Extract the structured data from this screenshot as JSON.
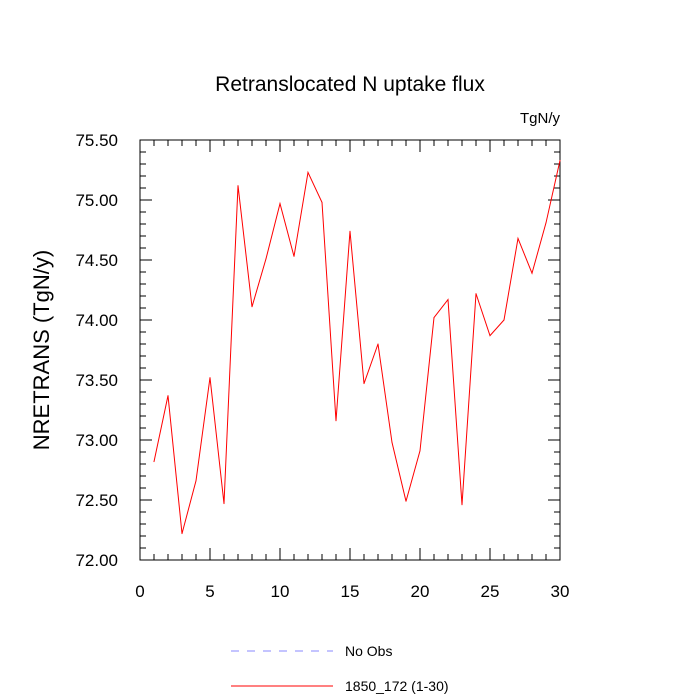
{
  "chart_data": {
    "type": "line",
    "title": "Retranslocated N uptake flux",
    "units": "TgN/y",
    "ylabel": "NRETRANS  (TgN/y)",
    "xlabel": "",
    "xlim": [
      0,
      30
    ],
    "ylim": [
      72.0,
      75.5
    ],
    "x_ticks": [
      0,
      5,
      10,
      15,
      20,
      25,
      30
    ],
    "x_tick_labels": [
      "0",
      "5",
      "10",
      "15",
      "20",
      "25",
      "30"
    ],
    "y_ticks": [
      72.0,
      72.5,
      73.0,
      73.5,
      74.0,
      74.5,
      75.0,
      75.5
    ],
    "y_tick_labels": [
      "72.00",
      "72.50",
      "73.00",
      "73.50",
      "74.00",
      "74.50",
      "75.00",
      "75.50"
    ],
    "x": [
      1,
      2,
      3,
      4,
      5,
      6,
      7,
      8,
      9,
      10,
      11,
      12,
      13,
      14,
      15,
      16,
      17,
      18,
      19,
      20,
      21,
      22,
      23,
      24,
      25,
      26,
      27,
      28,
      29,
      30
    ],
    "series": [
      {
        "name": "1850_172 (1-30)",
        "color": "#ff0000",
        "values": [
          72.82,
          73.37,
          72.22,
          72.66,
          73.52,
          72.47,
          75.12,
          74.11,
          74.51,
          74.97,
          74.53,
          75.23,
          74.98,
          73.16,
          74.74,
          73.47,
          73.8,
          72.98,
          72.49,
          72.91,
          74.02,
          74.17,
          72.46,
          74.22,
          73.87,
          74.0,
          74.68,
          74.39,
          74.81,
          75.33
        ]
      }
    ],
    "legend": {
      "placement": "bottom",
      "entries": [
        {
          "label": "No Obs",
          "color": "#8888ff",
          "style": "dashed"
        },
        {
          "label": "1850_172 (1-30)",
          "color": "#ff0000",
          "style": "solid"
        }
      ]
    },
    "grid": false
  }
}
